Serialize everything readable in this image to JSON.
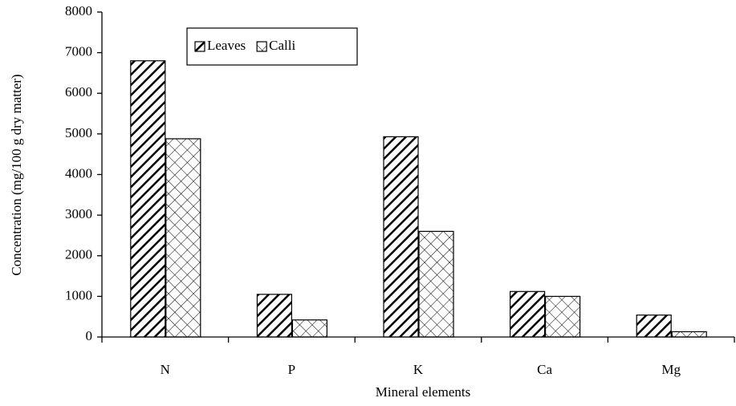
{
  "chart_data": {
    "type": "bar",
    "x_label": "Mineral elements",
    "y_label": "Concentration (mg/100 g dry matter)",
    "categories": [
      "N",
      "P",
      "K",
      "Ca",
      "Mg"
    ],
    "series": [
      {
        "name": "Leaves",
        "color": "#000000",
        "pattern": "hatch",
        "values": [
          6800,
          1050,
          4930,
          1120,
          540
        ]
      },
      {
        "name": "Calli",
        "color": "#000000",
        "pattern": "crosshatch",
        "values": [
          4880,
          420,
          2600,
          1000,
          130
        ]
      }
    ],
    "ylim": [
      0,
      8000
    ],
    "yticks": [
      0,
      1000,
      2000,
      3000,
      4000,
      5000,
      6000,
      7000,
      8000
    ],
    "grid": false,
    "legend": "top-left"
  }
}
